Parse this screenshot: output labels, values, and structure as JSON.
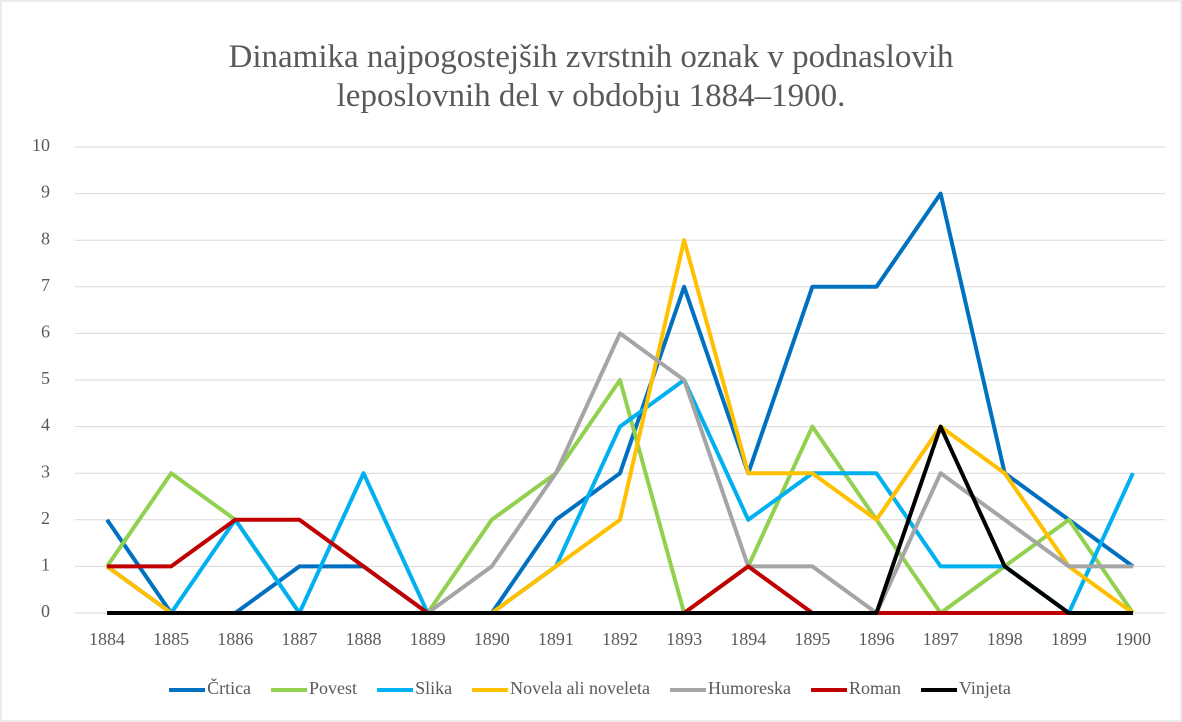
{
  "chart_data": {
    "type": "line",
    "title": "Dinamika najpogostejših zvrstnih oznak v podnaslovih leposlovnih del v obdobju 1884–1900.",
    "categories": [
      "1884",
      "1885",
      "1886",
      "1887",
      "1888",
      "1889",
      "1890",
      "1891",
      "1892",
      "1893",
      "1894",
      "1895",
      "1896",
      "1897",
      "1898",
      "1899",
      "1900"
    ],
    "series": [
      {
        "name": "Črtica",
        "color": "#0070c0",
        "values": [
          2,
          0,
          0,
          1,
          1,
          0,
          0,
          2,
          3,
          7,
          3,
          7,
          7,
          9,
          3,
          2,
          1
        ]
      },
      {
        "name": "Povest",
        "color": "#92d050",
        "values": [
          1,
          3,
          2,
          0,
          0,
          0,
          2,
          3,
          5,
          0,
          1,
          4,
          2,
          0,
          1,
          2,
          0
        ]
      },
      {
        "name": "Slika",
        "color": "#00b0f0",
        "values": [
          1,
          0,
          2,
          0,
          3,
          0,
          0,
          1,
          4,
          5,
          2,
          3,
          3,
          1,
          1,
          0,
          3
        ]
      },
      {
        "name": "Novela ali noveleta",
        "color": "#ffc000",
        "values": [
          1,
          0,
          0,
          0,
          0,
          0,
          0,
          1,
          2,
          8,
          3,
          3,
          2,
          4,
          3,
          1,
          0
        ]
      },
      {
        "name": "Humoreska",
        "color": "#a5a5a5",
        "values": [
          0,
          0,
          0,
          0,
          0,
          0,
          1,
          3,
          6,
          5,
          1,
          1,
          0,
          3,
          2,
          1,
          1
        ]
      },
      {
        "name": "Roman",
        "color": "#c00000",
        "values": [
          1,
          1,
          2,
          2,
          1,
          0,
          0,
          0,
          0,
          0,
          1,
          0,
          0,
          0,
          0,
          0,
          0
        ]
      },
      {
        "name": "Vinjeta",
        "color": "#000000",
        "values": [
          0,
          0,
          0,
          0,
          0,
          0,
          0,
          0,
          0,
          0,
          0,
          0,
          0,
          4,
          1,
          0,
          0
        ]
      }
    ],
    "ylim": [
      0,
      10
    ],
    "yticks": [
      0,
      1,
      2,
      3,
      4,
      5,
      6,
      7,
      8,
      9,
      10
    ],
    "grid": true,
    "legend": "bottom"
  }
}
